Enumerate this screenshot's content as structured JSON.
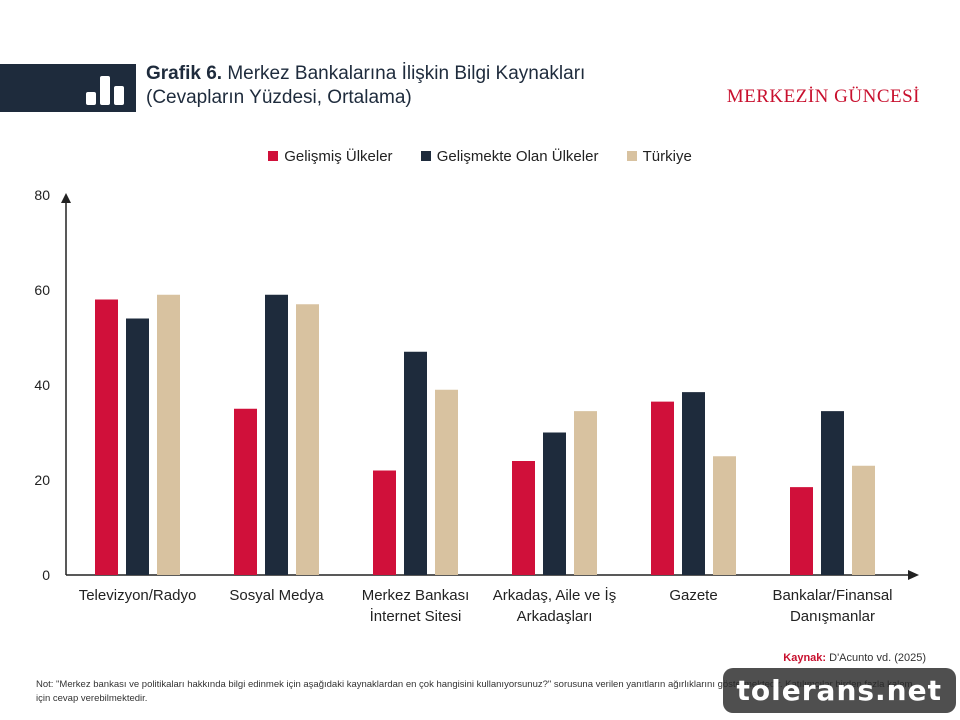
{
  "header": {
    "title_bold": "Grafik 6.",
    "title_rest": "Merkez Bankalarına İlişkin Bilgi Kaynakları",
    "subtitle": "(Cevapların Yüzdesi, Ortalama)",
    "brand": "MERKEZİN GÜNCESİ",
    "icon": "bar-chart-icon",
    "band_color": "#1e2b3c"
  },
  "chart_data": {
    "type": "bar",
    "title": "Merkez Bankalarına İlişkin Bilgi Kaynakları",
    "subtitle": "(Cevapların Yüzdesi, Ortalama)",
    "xlabel": "",
    "ylabel": "",
    "ylim": [
      0,
      80
    ],
    "yticks": [
      0,
      20,
      40,
      60,
      80
    ],
    "grid": false,
    "legend_position": "top-center",
    "categories": [
      [
        "Televizyon/Radyo"
      ],
      [
        "Sosyal Medya"
      ],
      [
        "Merkez Bankası",
        "İnternet Sitesi"
      ],
      [
        "Arkadaş, Aile ve İş",
        "Arkadaşları"
      ],
      [
        "Gazete"
      ],
      [
        "Bankalar/Finansal",
        "Danışmanlar"
      ]
    ],
    "series": [
      {
        "name": "Gelişmiş Ülkeler",
        "color": "#d0103a",
        "values": [
          58,
          35,
          22,
          24,
          36.5,
          18.5
        ]
      },
      {
        "name": "Gelişmekte Olan Ülkeler",
        "color": "#1e2b3c",
        "values": [
          54,
          59,
          47,
          30,
          38.5,
          34.5
        ]
      },
      {
        "name": "Türkiye",
        "color": "#d8c2a0",
        "values": [
          59,
          57,
          39,
          34.5,
          25,
          23
        ]
      }
    ]
  },
  "footer": {
    "source_label": "Kaynak:",
    "source_text": "D'Acunto vd. (2025)",
    "note": "Not: \"Merkez bankası ve politikaları hakkında bilgi edinmek için aşağıdaki kaynaklardan en çok hangisini kullanıyorsunuz?\" sorusuna verilen yanıtların ağırlıklarını göstermektedir. Katılımcılar birden fazla kalem için cevap verebilmektedir.",
    "watermark": "tolerans.net"
  }
}
